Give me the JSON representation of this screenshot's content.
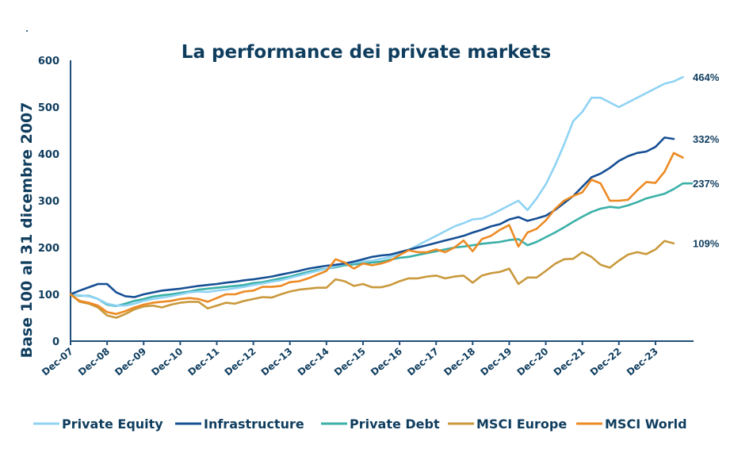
{
  "chart_data": {
    "type": "line",
    "title": "La performance dei private markets",
    "xlabel": "",
    "ylabel": "Base 100 al 31 dicembre 2007",
    "ylim": [
      0,
      600
    ],
    "yticks": [
      0,
      100,
      200,
      300,
      400,
      500,
      600
    ],
    "xticks": [
      "Dec-07",
      "Dec-08",
      "Dec-09",
      "Dec-10",
      "Dec-11",
      "Dec-12",
      "Dec-13",
      "Dec-14",
      "Dec-15",
      "Dec-16",
      "Dec-17",
      "Dec-18",
      "Dec-19",
      "Dec-20",
      "Dec-21",
      "Dec-22",
      "Dec-23"
    ],
    "x_frequency": "quarterly",
    "x_start": "Dec-07",
    "grid": false,
    "legend_position": "bottom",
    "series": [
      {
        "name": "Private Equity",
        "color": "#8fd3f4",
        "end_label": "464%",
        "values": [
          100,
          98,
          96,
          90,
          80,
          76,
          76,
          80,
          86,
          90,
          93,
          96,
          100,
          104,
          106,
          105,
          108,
          110,
          113,
          116,
          120,
          123,
          127,
          130,
          135,
          140,
          145,
          150,
          155,
          160,
          165,
          168,
          170,
          172,
          176,
          180,
          186,
          195,
          205,
          215,
          225,
          235,
          245,
          252,
          260,
          262,
          270,
          280,
          290,
          300,
          280,
          305,
          335,
          375,
          420,
          470,
          490,
          520,
          520,
          510,
          500,
          510,
          520,
          530,
          540,
          550,
          555,
          564
        ]
      },
      {
        "name": "Infrastructure",
        "color": "#164f94",
        "end_label": "332%",
        "values": [
          100,
          108,
          115,
          122,
          122,
          104,
          96,
          94,
          100,
          104,
          108,
          110,
          112,
          115,
          118,
          120,
          122,
          125,
          127,
          130,
          132,
          135,
          138,
          142,
          146,
          150,
          155,
          158,
          161,
          163,
          166,
          170,
          175,
          180,
          183,
          185,
          190,
          195,
          200,
          205,
          210,
          215,
          220,
          225,
          232,
          238,
          245,
          250,
          260,
          265,
          257,
          262,
          268,
          280,
          295,
          310,
          330,
          350,
          358,
          370,
          385,
          395,
          402,
          405,
          415,
          435,
          432
        ]
      },
      {
        "name": "Private Debt",
        "color": "#3ab0a7",
        "end_label": "237%",
        "values": [
          100,
          97,
          97,
          90,
          78,
          75,
          80,
          86,
          90,
          95,
          98,
          100,
          103,
          106,
          110,
          112,
          114,
          116,
          118,
          120,
          124,
          126,
          130,
          134,
          138,
          143,
          148,
          152,
          155,
          158,
          162,
          164,
          166,
          168,
          170,
          174,
          178,
          180,
          184,
          188,
          192,
          196,
          200,
          202,
          205,
          208,
          210,
          212,
          216,
          218,
          205,
          212,
          222,
          232,
          243,
          255,
          266,
          276,
          283,
          287,
          285,
          290,
          297,
          305,
          310,
          315,
          325,
          337,
          337
        ]
      },
      {
        "name": "MSCI Europe",
        "color": "#c9993c",
        "end_label": "109%",
        "values": [
          100,
          84,
          80,
          72,
          55,
          50,
          58,
          68,
          74,
          76,
          72,
          78,
          82,
          84,
          84,
          70,
          76,
          82,
          80,
          86,
          90,
          94,
          93,
          100,
          106,
          110,
          112,
          114,
          114,
          132,
          128,
          118,
          122,
          115,
          115,
          120,
          128,
          134,
          134,
          138,
          140,
          134,
          138,
          140,
          125,
          140,
          145,
          148,
          155,
          122,
          136,
          136,
          150,
          165,
          175,
          176,
          190,
          180,
          163,
          157,
          172,
          185,
          190,
          186,
          196,
          214,
          209
        ]
      },
      {
        "name": "MSCI World",
        "color": "#ec8a23",
        "end_label": "",
        "values": [
          100,
          86,
          82,
          76,
          62,
          58,
          64,
          72,
          78,
          82,
          84,
          86,
          90,
          92,
          90,
          84,
          92,
          100,
          100,
          106,
          108,
          116,
          116,
          118,
          126,
          128,
          134,
          142,
          150,
          175,
          168,
          155,
          166,
          162,
          166,
          172,
          184,
          194,
          190,
          190,
          196,
          190,
          200,
          215,
          192,
          218,
          225,
          238,
          248,
          202,
          232,
          240,
          258,
          282,
          300,
          310,
          318,
          345,
          337,
          300,
          300,
          302,
          322,
          340,
          338,
          362,
          402,
          392
        ]
      }
    ]
  }
}
